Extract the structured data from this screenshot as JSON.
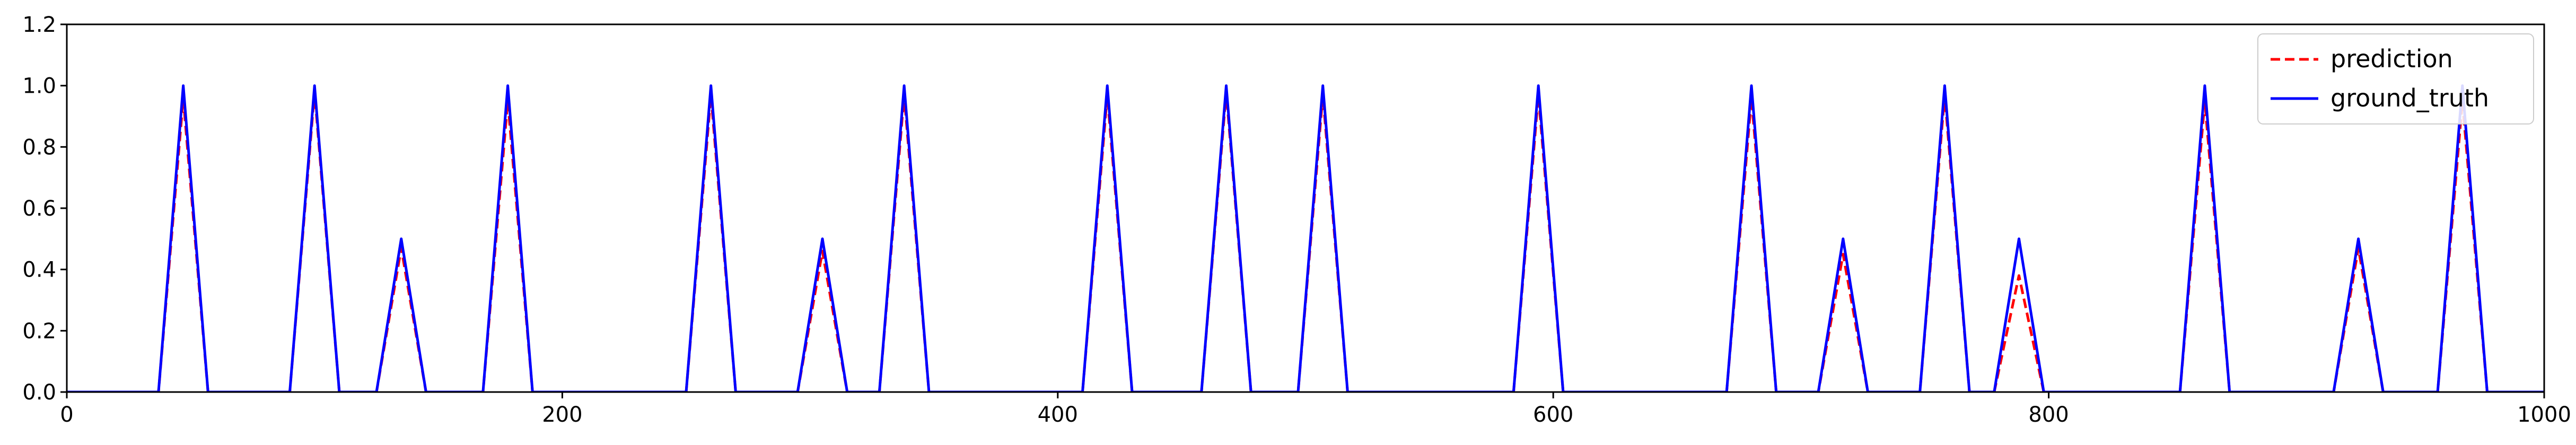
{
  "chart_data": {
    "type": "line",
    "title": "",
    "xlabel": "",
    "ylabel": "",
    "xlim": [
      0,
      1000
    ],
    "ylim": [
      0,
      1.2
    ],
    "xticks": [
      0,
      200,
      400,
      600,
      800,
      1000
    ],
    "xtick_labels": [
      "0",
      "200",
      "400",
      "600",
      "800",
      "1000"
    ],
    "yticks": [
      0.0,
      0.2,
      0.4,
      0.6,
      0.8,
      1.0,
      1.2
    ],
    "ytick_labels": [
      "0.0",
      "0.2",
      "0.4",
      "0.6",
      "0.8",
      "1.0",
      "1.2"
    ],
    "grid": false,
    "legend_position": "top-right",
    "peaks": [
      {
        "center": 47,
        "height": 1.0
      },
      {
        "center": 100,
        "height": 1.0
      },
      {
        "center": 135,
        "height": 0.5
      },
      {
        "center": 178,
        "height": 1.0
      },
      {
        "center": 260,
        "height": 1.0
      },
      {
        "center": 305,
        "height": 0.5
      },
      {
        "center": 338,
        "height": 1.0
      },
      {
        "center": 420,
        "height": 1.0
      },
      {
        "center": 468,
        "height": 1.0
      },
      {
        "center": 507,
        "height": 1.0
      },
      {
        "center": 594,
        "height": 1.0
      },
      {
        "center": 680,
        "height": 1.0
      },
      {
        "center": 717,
        "height": 0.5
      },
      {
        "center": 758,
        "height": 1.0
      },
      {
        "center": 788,
        "height": 0.5
      },
      {
        "center": 863,
        "height": 1.0
      },
      {
        "center": 925,
        "height": 0.5
      },
      {
        "center": 967,
        "height": 1.0
      }
    ],
    "series": [
      {
        "name": "prediction",
        "color": "#ff0000",
        "style": "dashed",
        "peak_heights": [
          0.96,
          0.98,
          0.47,
          0.95,
          0.97,
          0.46,
          0.97,
          0.97,
          0.98,
          0.97,
          0.97,
          0.96,
          0.45,
          0.97,
          0.38,
          0.95,
          0.47,
          0.95
        ]
      },
      {
        "name": "ground_truth",
        "color": "#0000ff",
        "style": "solid",
        "peak_heights": [
          1.0,
          1.0,
          0.5,
          1.0,
          1.0,
          0.5,
          1.0,
          1.0,
          1.0,
          1.0,
          1.0,
          1.0,
          0.5,
          1.0,
          0.5,
          1.0,
          0.5,
          1.0
        ]
      }
    ]
  }
}
